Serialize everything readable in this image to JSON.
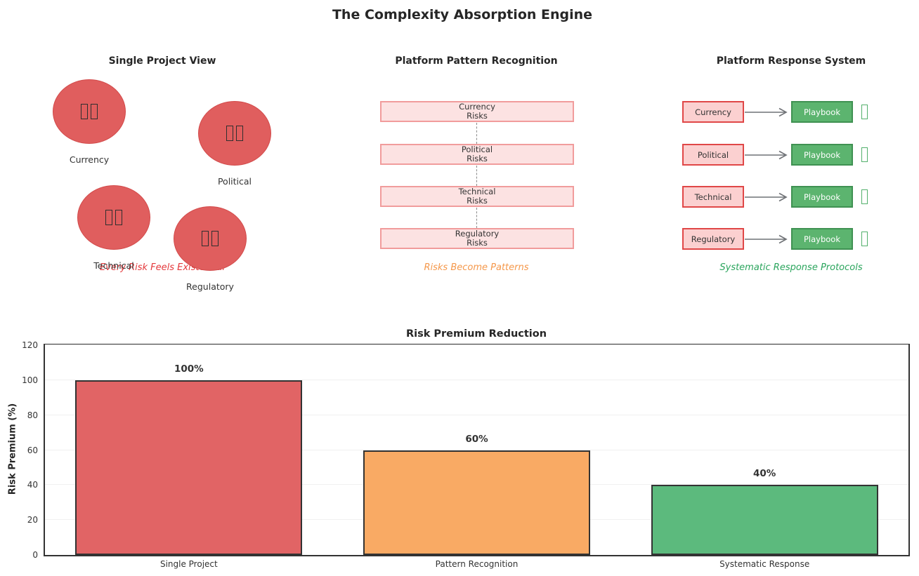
{
  "title": "The Complexity Absorption Engine",
  "colors": {
    "circle_fill": "#e05e5e",
    "circle_border": "#d24a4a",
    "tofu_dark": "#2f2f2f",
    "light_pink_fill": "#fce2e2",
    "light_pink_border": "#f19c9c",
    "pink_fill": "#fbd0d0",
    "pink_border": "#e04747",
    "green_fill": "#5cb46f",
    "green_border": "#3f9152",
    "green_tofu": "#53b06c",
    "caption_red": "#e4393c",
    "caption_orange": "#f5984b",
    "caption_green": "#2ba55d",
    "arrow_gray": "#6f7276",
    "text": "#333333"
  },
  "panels": {
    "single_project": {
      "title": "Single Project View",
      "caption": "Every Risk Feels Existential",
      "risks": [
        {
          "label": "Currency"
        },
        {
          "label": "Political"
        },
        {
          "label": "Technical"
        },
        {
          "label": "Regulatory"
        }
      ]
    },
    "pattern_recognition": {
      "title": "Platform Pattern Recognition",
      "caption": "Risks Become Patterns",
      "boxes": [
        {
          "line1": "Currency",
          "line2": "Risks"
        },
        {
          "line1": "Political",
          "line2": "Risks"
        },
        {
          "line1": "Technical",
          "line2": "Risks"
        },
        {
          "line1": "Regulatory",
          "line2": "Risks"
        }
      ]
    },
    "response_system": {
      "title": "Platform Response System",
      "caption": "Systematic Response Protocols",
      "rows": [
        {
          "risk": "Currency",
          "action": "Playbook"
        },
        {
          "risk": "Political",
          "action": "Playbook"
        },
        {
          "risk": "Technical",
          "action": "Playbook"
        },
        {
          "risk": "Regulatory",
          "action": "Playbook"
        }
      ]
    }
  },
  "chart_data": {
    "type": "bar",
    "title": "Risk Premium Reduction",
    "categories": [
      "Single Project",
      "Pattern Recognition",
      "Systematic Response"
    ],
    "values": [
      100,
      60,
      40
    ],
    "bar_labels": [
      "100%",
      "60%",
      "40%"
    ],
    "bar_colors": [
      "#e16465",
      "#f9aa64",
      "#5cba7d"
    ],
    "xlabel": "",
    "ylabel": "Risk Premium (%)",
    "ylim": [
      0,
      120
    ],
    "yticks": [
      0,
      20,
      40,
      60,
      80,
      100,
      120
    ],
    "grid": true,
    "legend": false
  }
}
